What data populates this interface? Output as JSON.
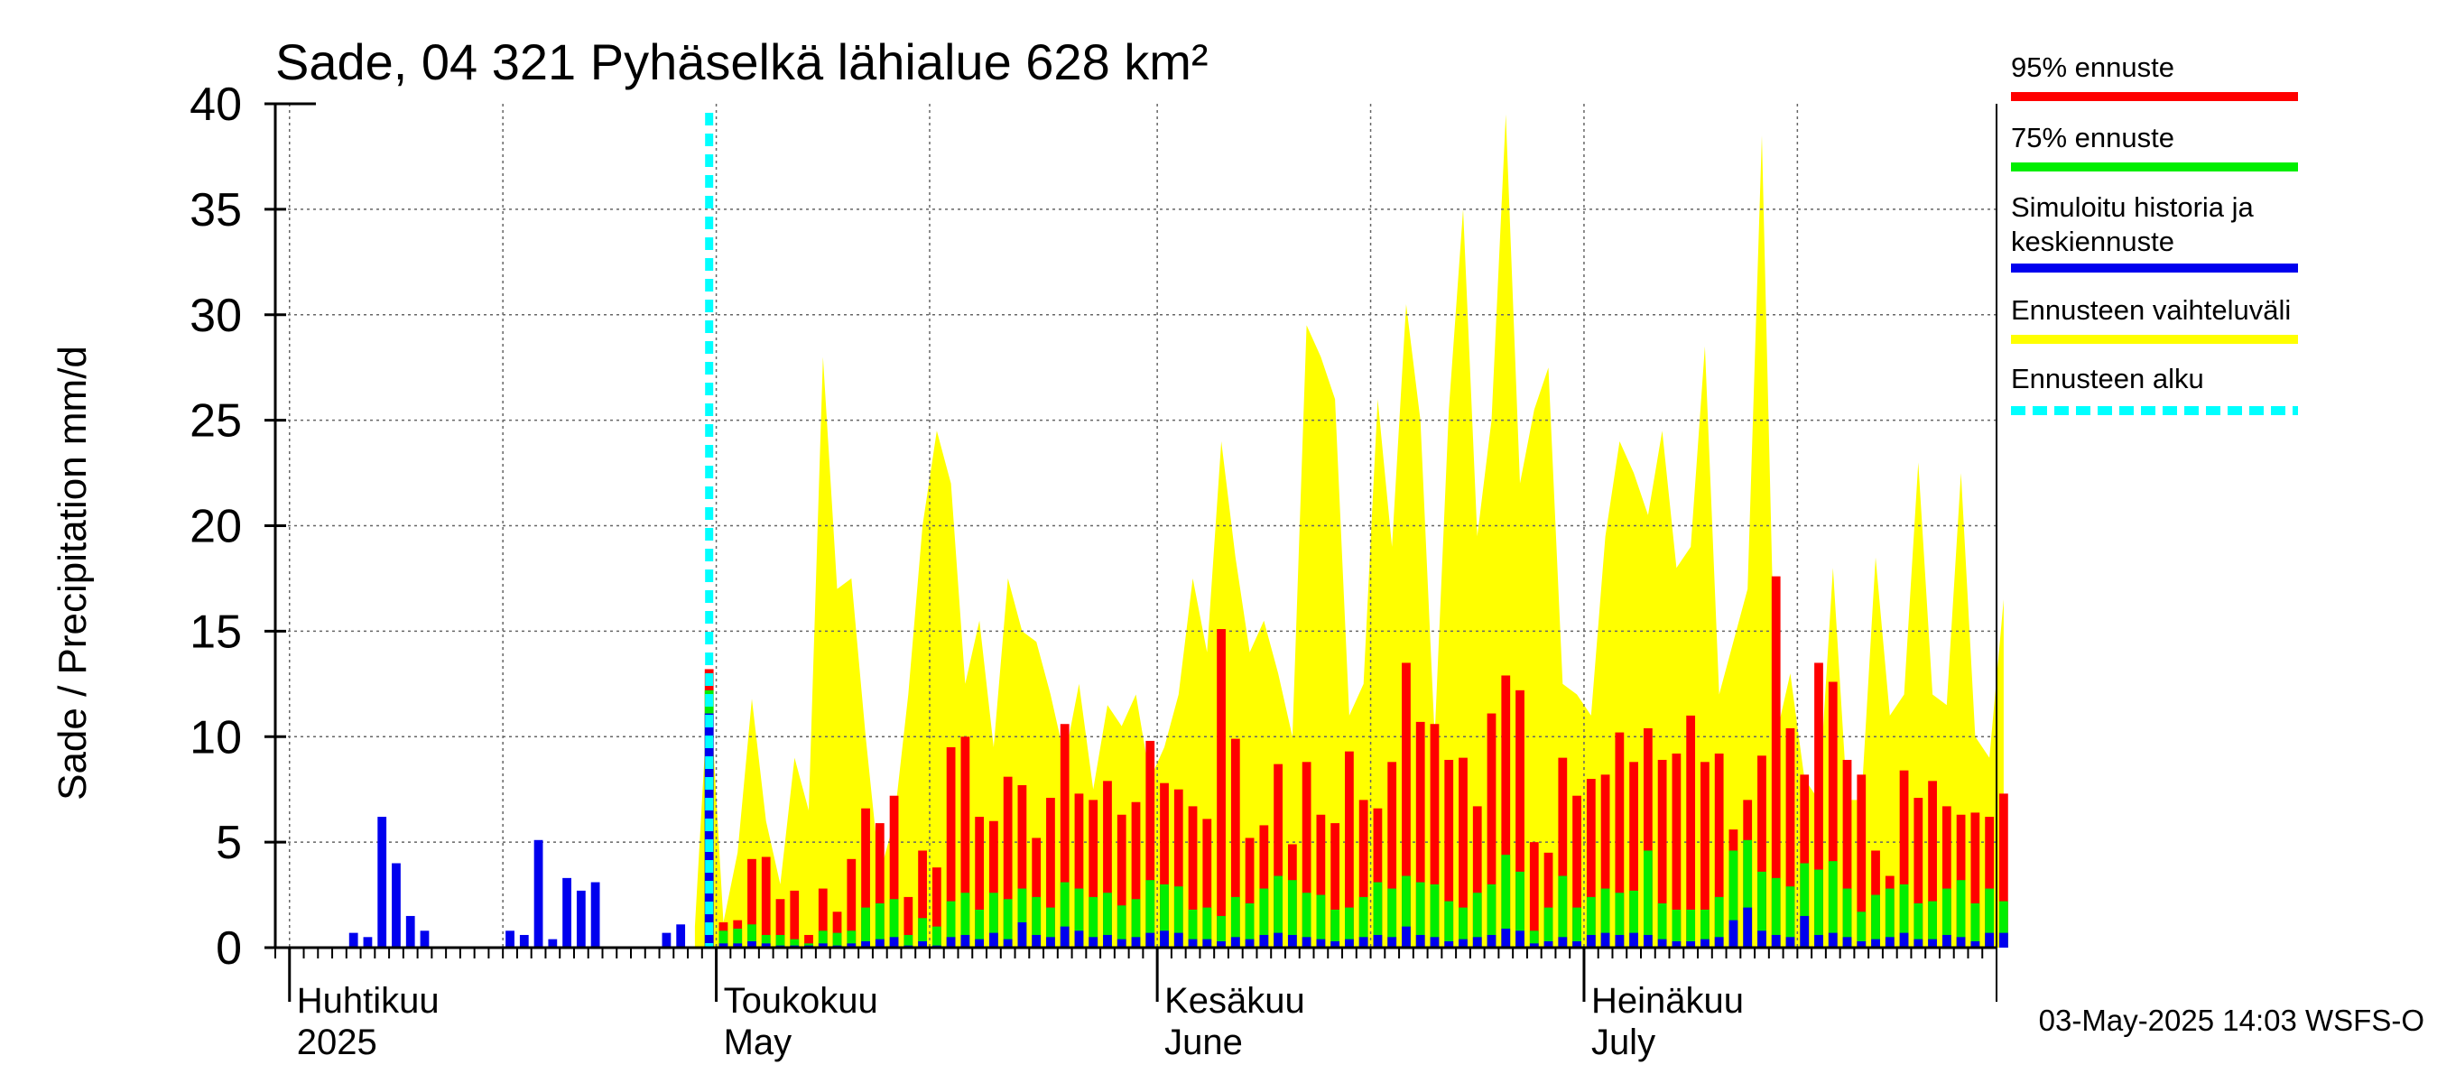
{
  "chart_data": {
    "type": "bar",
    "title": "Sade, 04 321 Pyhäselkä lähialue 628 km²",
    "ylabel": "Sade / Precipitation   mm/d",
    "ylim": [
      0,
      40
    ],
    "yticks": [
      "0",
      "5",
      "10",
      "15",
      "20",
      "25",
      "30",
      "35",
      "40"
    ],
    "grid": true,
    "start_date": "2025-03-31",
    "forecast_start_day": 30,
    "months": [
      {
        "fi": "Huhtikuu",
        "en": "2025",
        "day": 1
      },
      {
        "fi": "Toukokuu",
        "en": "May",
        "day": 31
      },
      {
        "fi": "Kesäkuu",
        "en": "June",
        "day": 62
      },
      {
        "fi": "Heinäkuu",
        "en": "July",
        "day": 92
      }
    ],
    "history": {
      "name": "Simuloitu historia",
      "days": [
        1,
        2,
        3,
        4,
        5,
        6,
        7,
        8,
        9,
        10,
        11,
        12,
        13,
        14,
        15,
        16,
        17,
        18,
        19,
        20,
        21,
        22,
        23,
        24,
        25,
        26,
        27,
        28,
        29
      ],
      "values": [
        0,
        0,
        0,
        0,
        0.7,
        0.5,
        6.2,
        4.0,
        1.5,
        0.8,
        0,
        0,
        0,
        0,
        0,
        0.8,
        0.6,
        5.1,
        0.4,
        3.3,
        2.7,
        3.1,
        0,
        0,
        0,
        0,
        0.7,
        1.1,
        0
      ]
    },
    "forecast_days": [
      29,
      30,
      31,
      32,
      33,
      34,
      35,
      36,
      37,
      38,
      39,
      40,
      41,
      42,
      43,
      44,
      45,
      46,
      47,
      48,
      49,
      50,
      51,
      52,
      53,
      54,
      55,
      56,
      57,
      58,
      59,
      60,
      61,
      62,
      63,
      64,
      65,
      66,
      67,
      68,
      69,
      70,
      71,
      72,
      73,
      74,
      75,
      76,
      77,
      78,
      79,
      80,
      81,
      82,
      83,
      84,
      85,
      86,
      87,
      88,
      89,
      90,
      91,
      92,
      93,
      94,
      95,
      96,
      97,
      98,
      99,
      100,
      101,
      102,
      103,
      104,
      105,
      106,
      107,
      108,
      109,
      110,
      111,
      112,
      113,
      114,
      115,
      116,
      117,
      118,
      119,
      120,
      121
    ],
    "series": [
      {
        "name": "Ennusteen vaihteluväli (max)",
        "color": "#ffff00",
        "values": [
          1.0,
          13.0,
          1.2,
          4.5,
          11.8,
          6.0,
          3.0,
          9.0,
          6.5,
          28.0,
          17.0,
          17.5,
          10.0,
          3.5,
          6.0,
          12.0,
          20.0,
          24.5,
          22.0,
          12.5,
          15.5,
          9.5,
          17.5,
          15.0,
          14.5,
          12.0,
          9.0,
          12.5,
          7.5,
          11.5,
          10.5,
          12.0,
          8.0,
          9.5,
          12.0,
          17.5,
          14.0,
          24.0,
          18.5,
          14.0,
          15.5,
          13.0,
          10.0,
          29.5,
          28.0,
          26.0,
          11.0,
          12.5,
          26.0,
          19.0,
          30.5,
          25.0,
          10.0,
          25.5,
          35.0,
          19.5,
          25.0,
          39.5,
          22.0,
          25.5,
          27.5,
          12.5,
          12.0,
          11.0,
          19.5,
          24.0,
          22.5,
          20.5,
          24.5,
          18.0,
          19.0,
          28.5,
          12.0,
          14.5,
          17.0,
          38.5,
          10.0,
          13.0,
          8.0,
          7.0,
          18.0,
          7.0,
          7.0,
          18.5,
          11.0,
          12.0,
          23.0,
          12.0,
          11.5,
          22.5,
          10.0,
          9.0,
          16.5
        ]
      },
      {
        "name": "95% ennuste",
        "color": "#ff0000",
        "values": [
          0,
          13.2,
          1.2,
          1.3,
          4.2,
          4.3,
          2.3,
          2.7,
          0.6,
          2.8,
          1.7,
          4.2,
          6.6,
          5.9,
          7.2,
          2.4,
          4.6,
          3.8,
          9.5,
          10.0,
          6.2,
          6.0,
          8.1,
          7.7,
          5.2,
          7.1,
          10.6,
          7.3,
          7.0,
          7.9,
          6.3,
          6.9,
          9.8,
          7.8,
          7.5,
          6.7,
          6.1,
          15.1,
          9.9,
          5.2,
          5.8,
          8.7,
          4.9,
          8.8,
          6.3,
          5.9,
          9.3,
          7.0,
          6.6,
          8.8,
          13.5,
          10.7,
          10.6,
          8.9,
          9.0,
          6.7,
          11.1,
          12.9,
          12.2,
          5.0,
          4.5,
          9.0,
          7.2,
          8.0,
          8.2,
          10.2,
          8.8,
          10.4,
          8.9,
          9.2,
          11.0,
          8.8,
          9.2,
          5.6,
          7.0,
          9.1,
          17.6,
          10.4,
          8.2,
          13.5,
          12.6,
          8.9,
          8.2,
          4.6,
          3.4,
          8.4,
          7.1,
          7.9,
          6.7,
          6.3,
          6.4,
          6.2,
          7.3
        ]
      },
      {
        "name": "75% ennuste",
        "color": "#00ee00",
        "values": [
          0,
          12.2,
          0.8,
          0.9,
          1.1,
          0.6,
          0.6,
          0.4,
          0.2,
          0.8,
          0.7,
          0.8,
          1.9,
          2.1,
          2.3,
          0.6,
          1.4,
          1.0,
          2.2,
          2.6,
          1.8,
          2.6,
          2.3,
          2.8,
          2.4,
          1.9,
          3.1,
          2.8,
          2.4,
          2.6,
          2.0,
          2.3,
          3.2,
          3.0,
          2.9,
          1.8,
          1.9,
          1.5,
          2.4,
          2.1,
          2.8,
          3.4,
          3.2,
          2.6,
          2.5,
          1.8,
          1.9,
          2.4,
          3.1,
          2.8,
          3.4,
          3.1,
          3.0,
          2.2,
          1.9,
          2.6,
          3.0,
          4.4,
          3.6,
          0.8,
          1.9,
          3.4,
          1.9,
          2.4,
          2.8,
          2.6,
          2.7,
          4.6,
          2.1,
          1.8,
          1.8,
          1.8,
          2.4,
          4.6,
          5.1,
          3.6,
          3.3,
          2.9,
          4.0,
          3.7,
          4.1,
          2.8,
          1.7,
          2.5,
          2.8,
          3.0,
          2.1,
          2.2,
          2.8,
          3.2,
          2.1,
          2.8,
          2.2
        ]
      },
      {
        "name": "Simuloitu historia ja keskiennuste",
        "color": "#0000ee",
        "values": [
          0,
          11.1,
          0.2,
          0.2,
          0.3,
          0.2,
          0.1,
          0.1,
          0.1,
          0.2,
          0.1,
          0.2,
          0.3,
          0.4,
          0.5,
          0.1,
          0.3,
          0.1,
          0.5,
          0.6,
          0.4,
          0.7,
          0.4,
          1.2,
          0.6,
          0.5,
          1.0,
          0.8,
          0.5,
          0.6,
          0.4,
          0.5,
          0.7,
          0.8,
          0.7,
          0.4,
          0.4,
          0.3,
          0.5,
          0.4,
          0.6,
          0.7,
          0.6,
          0.5,
          0.4,
          0.3,
          0.4,
          0.5,
          0.6,
          0.5,
          1.0,
          0.6,
          0.5,
          0.3,
          0.4,
          0.5,
          0.6,
          0.9,
          0.8,
          0.2,
          0.3,
          0.5,
          0.3,
          0.6,
          0.7,
          0.6,
          0.7,
          0.6,
          0.4,
          0.3,
          0.3,
          0.4,
          0.5,
          1.3,
          1.9,
          0.8,
          0.6,
          0.5,
          1.5,
          0.6,
          0.7,
          0.5,
          0.3,
          0.4,
          0.5,
          0.7,
          0.4,
          0.4,
          0.6,
          0.5,
          0.3,
          0.7,
          0.7
        ]
      }
    ],
    "legend": [
      {
        "label": "95% ennuste",
        "color": "#ff0000",
        "style": "solid"
      },
      {
        "label": "75% ennuste",
        "color": "#00ee00",
        "style": "solid"
      },
      {
        "label": "Simuloitu historia ja",
        "label2": "keskiennuste",
        "color": "#0000ee",
        "style": "solid"
      },
      {
        "label": "Ennusteen vaihteluväli",
        "color": "#ffff00",
        "style": "solid"
      },
      {
        "label": "Ennusteen alku",
        "color": "#00ffff",
        "style": "dashed"
      }
    ],
    "footer": "03-May-2025 14:03 WSFS-O"
  }
}
